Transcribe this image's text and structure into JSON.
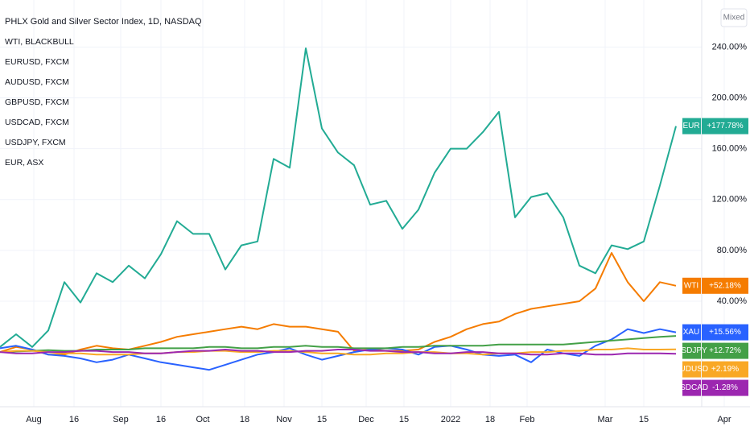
{
  "chart_data": {
    "type": "line",
    "title": "PHLX Gold and Silver Sector Index, 1D, NASDAQ",
    "legend_items": [
      "WTI, BLACKBULL",
      "EURUSD, FXCM",
      "AUDUSD, FXCM",
      "GBPUSD, FXCM",
      "USDCAD, FXCM",
      "USDJPY, FXCM",
      "EUR, ASX"
    ],
    "scale_button": "Mixed",
    "x": [
      0,
      4,
      8,
      12,
      16,
      20,
      24,
      28,
      32,
      36,
      40,
      44,
      48,
      52,
      56,
      60,
      64,
      68,
      72,
      76,
      80,
      84,
      88,
      92,
      96,
      100,
      104,
      108,
      112,
      116,
      120,
      124,
      128,
      132,
      136,
      140,
      144,
      148,
      152,
      156,
      160,
      164,
      168
    ],
    "xlim": [
      0,
      186.4
    ],
    "xticks": [
      {
        "value": 8.4,
        "label": "Aug"
      },
      {
        "value": 18.4,
        "label": "16"
      },
      {
        "value": 30,
        "label": "Sep"
      },
      {
        "value": 40,
        "label": "16"
      },
      {
        "value": 50.4,
        "label": "Oct"
      },
      {
        "value": 60.8,
        "label": "18"
      },
      {
        "value": 70.6,
        "label": "Nov"
      },
      {
        "value": 80,
        "label": "15"
      },
      {
        "value": 91,
        "label": "Dec"
      },
      {
        "value": 100.4,
        "label": "15"
      },
      {
        "value": 112,
        "label": "2022"
      },
      {
        "value": 121.8,
        "label": "18"
      },
      {
        "value": 131,
        "label": "Feb"
      },
      {
        "value": 150.4,
        "label": "Mar"
      },
      {
        "value": 160,
        "label": "15"
      },
      {
        "value": 180,
        "label": "Apr"
      }
    ],
    "ylim": [
      -43,
      277
    ],
    "yticks": [
      {
        "value": 40,
        "label": "40.00%"
      },
      {
        "value": 80,
        "label": "80.00%"
      },
      {
        "value": 120,
        "label": "120.00%"
      },
      {
        "value": 160,
        "label": "160.00%"
      },
      {
        "value": 200,
        "label": "200.00%"
      },
      {
        "value": 240,
        "label": "240.00%"
      }
    ],
    "grid": true,
    "series": [
      {
        "name": "EUR",
        "color": "#22ab94",
        "last_label": "+177.78%",
        "values": [
          4,
          14,
          4,
          17,
          55,
          39,
          62,
          55,
          68,
          58,
          77,
          103,
          93,
          93,
          65,
          84,
          87,
          152,
          145,
          239,
          176,
          157,
          147,
          116,
          119,
          97,
          112,
          141,
          160,
          160,
          173,
          189,
          106,
          122,
          125,
          106,
          68,
          62,
          84,
          81,
          87,
          131,
          177.78
        ]
      },
      {
        "name": "WTI",
        "color": "#f57c00",
        "last_label": "+52.18%",
        "values": [
          0,
          4,
          2,
          -2,
          -2,
          2,
          5,
          3,
          2,
          5,
          8,
          12,
          14,
          16,
          18,
          20,
          18,
          22,
          20,
          20,
          18,
          16,
          1,
          2,
          1,
          1,
          2,
          8,
          12,
          18,
          22,
          24,
          30,
          34,
          36,
          38,
          40,
          50,
          78,
          55,
          40,
          55,
          52.18
        ]
      },
      {
        "name": "XAU",
        "color": "#2962ff",
        "last_label": "+15.56%",
        "values": [
          3,
          5,
          2,
          -2,
          -3,
          -5,
          -8,
          -6,
          -2,
          -5,
          -8,
          -10,
          -12,
          -14,
          -10,
          -6,
          -2,
          0,
          3,
          -2,
          -6,
          -3,
          0,
          2,
          3,
          2,
          -2,
          4,
          5,
          2,
          -2,
          -3,
          -2,
          -8,
          2,
          -1,
          -3,
          5,
          10,
          18,
          15,
          18,
          15.56
        ]
      },
      {
        "name": "USDJPY",
        "color": "#43a047",
        "last_label": "+12.72%",
        "values": [
          0,
          0.5,
          1,
          1.5,
          1,
          1,
          2,
          2,
          2,
          3,
          3,
          3,
          3,
          4,
          4,
          3,
          3,
          4,
          4,
          5,
          4,
          4,
          3,
          3,
          3,
          4,
          4,
          5,
          5,
          5,
          5,
          6,
          6,
          6,
          6,
          6,
          7,
          8,
          9,
          10,
          11,
          12,
          12.72
        ]
      },
      {
        "name": "AUDUSD",
        "color": "#f9a825",
        "last_label": "+2.19%",
        "values": [
          0,
          1,
          1,
          0,
          -1,
          -1,
          -2,
          -2,
          -2,
          -1,
          -1,
          0,
          0,
          1,
          1,
          0,
          0,
          1,
          1,
          0,
          -1,
          -1,
          -2,
          -2,
          -1,
          -1,
          0,
          0,
          -1,
          -1,
          -2,
          -1,
          -1,
          0,
          0,
          1,
          1,
          2,
          2,
          3,
          2,
          2,
          2.19
        ]
      },
      {
        "name": "USDCAD",
        "color": "#9c27b0",
        "last_label": "-1.28%",
        "values": [
          0,
          -1,
          -1,
          0,
          0,
          1,
          1,
          0,
          0,
          -1,
          -1,
          0,
          1,
          1,
          2,
          1,
          1,
          0,
          0,
          1,
          1,
          2,
          2,
          1,
          1,
          0,
          0,
          -1,
          -1,
          0,
          0,
          -1,
          -1,
          -2,
          -2,
          -1,
          -1,
          -2,
          -2,
          -1,
          -1,
          -1,
          -1.28
        ]
      }
    ]
  }
}
